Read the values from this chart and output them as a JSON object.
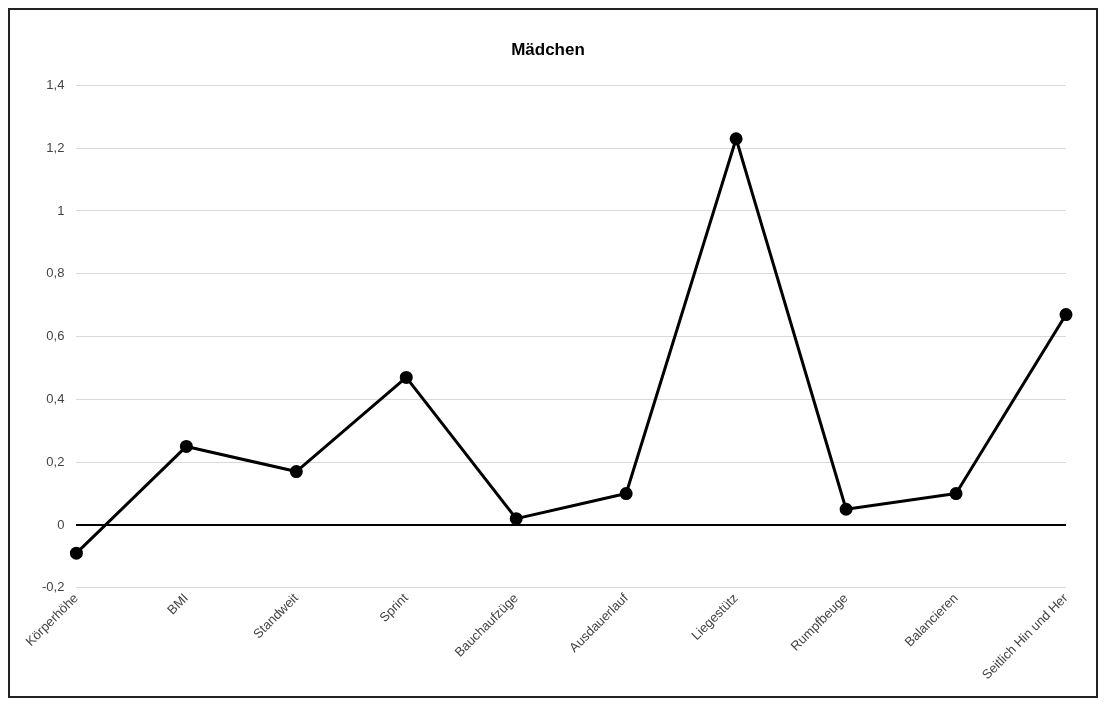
{
  "chart_data": {
    "type": "line",
    "title": "Mädchen",
    "categories": [
      "Körperhöhe",
      "BMI",
      "Standweit",
      "Sprint",
      "Bauchaufzüge",
      "Ausdauerlauf",
      "Liegestütz",
      "Rumpfbeuge",
      "Balancieren",
      "Seitlich Hin und Her"
    ],
    "series": [
      {
        "color": "#000000",
        "values": [
          -0.09,
          0.25,
          0.17,
          0.47,
          0.02,
          0.1,
          1.23,
          0.05,
          0.1,
          0.67
        ]
      }
    ],
    "ylim": [
      -0.2,
      1.4
    ],
    "yticks": [
      {
        "value": -0.2,
        "label": "-0,2"
      },
      0,
      {
        "value": 0.2,
        "label": "0,2"
      },
      {
        "value": 0.4,
        "label": "0,4"
      },
      {
        "value": 0.6,
        "label": "0,6"
      },
      {
        "value": 0.8,
        "label": "0,8"
      },
      1,
      {
        "value": 1.2,
        "label": "1,2"
      },
      {
        "value": 1.4,
        "label": "1,4"
      }
    ],
    "grid": "y",
    "legend": false,
    "marker": "circle",
    "line_style": "solid"
  }
}
